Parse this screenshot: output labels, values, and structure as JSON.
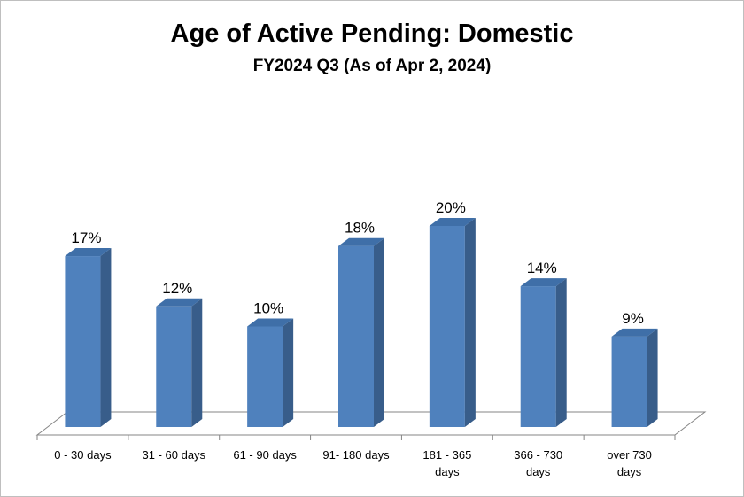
{
  "chart_data": {
    "type": "bar",
    "title": "Age of Active Pending: Domestic",
    "subtitle": "FY2024 Q3 (As of Apr 2, 2024)",
    "categories": [
      [
        "0 - 30 days"
      ],
      [
        "31 - 60 days"
      ],
      [
        "61 - 90 days"
      ],
      [
        "91- 180 days"
      ],
      [
        "181 - 365",
        "days"
      ],
      [
        "366 - 730",
        "days"
      ],
      [
        "over 730",
        "days"
      ]
    ],
    "values": [
      17,
      12,
      10,
      18,
      20,
      14,
      9
    ],
    "data_labels": [
      "17%",
      "12%",
      "10%",
      "18%",
      "20%",
      "14%",
      "9%"
    ],
    "unit": "%",
    "ylim": [
      0,
      20
    ],
    "grid": false,
    "legend": "none",
    "colors": {
      "bar_front": "#4f81bd",
      "bar_top": "#3f6fa8",
      "bar_side": "#385d8a",
      "floor": "#ffffff",
      "axis": "#868686"
    }
  }
}
